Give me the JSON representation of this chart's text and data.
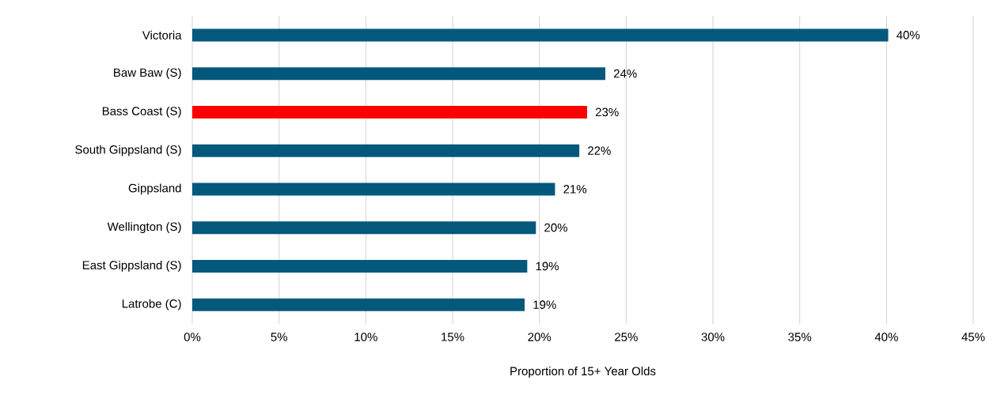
{
  "chart_data": {
    "type": "bar",
    "orientation": "horizontal",
    "xlabel": "Proportion of 15+ Year Olds",
    "categories": [
      "Victoria",
      "Baw Baw (S)",
      "Bass Coast (S)",
      "South Gippsland (S)",
      "Gippsland",
      "Wellington (S)",
      "East Gippsland (S)",
      "Latrobe (C)"
    ],
    "values": [
      40.1,
      23.8,
      22.75,
      22.3,
      20.9,
      19.8,
      19.3,
      19.15
    ],
    "value_labels": [
      "40%",
      "24%",
      "23%",
      "22%",
      "21%",
      "20%",
      "19%",
      "19%"
    ],
    "colors": [
      "#03587c",
      "#03587c",
      "#ff0000",
      "#03587c",
      "#03587c",
      "#03587c",
      "#03587c",
      "#03587c"
    ],
    "xlim": [
      0,
      45
    ],
    "xticks": [
      {
        "value": 0,
        "label": "0%"
      },
      {
        "value": 5,
        "label": "5%"
      },
      {
        "value": 10,
        "label": "10%"
      },
      {
        "value": 15,
        "label": "15%"
      },
      {
        "value": 20,
        "label": "20%"
      },
      {
        "value": 25,
        "label": "25%"
      },
      {
        "value": 30,
        "label": "30%"
      },
      {
        "value": 35,
        "label": "35%"
      },
      {
        "value": 40,
        "label": "40%"
      },
      {
        "value": 45,
        "label": "45%"
      }
    ],
    "grid": "x"
  }
}
